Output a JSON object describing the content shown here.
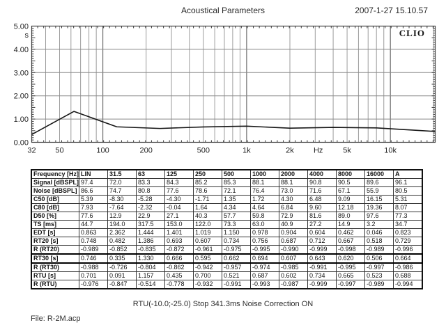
{
  "header": {
    "title": "Acoustical Parameters",
    "datetime": "2007-1-27 15.10.57"
  },
  "brand": "CLIO",
  "colors": {
    "grid_minor": "#9c9c9c",
    "grid_major": "#6b6b6b",
    "grid_horizontal": "#8a8a8a",
    "axis": "#3c3c3c",
    "curve": "#161616",
    "text": "#222222"
  },
  "chart_data": {
    "type": "line",
    "title": "Acoustical Parameters",
    "xlabel": "Hz",
    "ylabel": "s",
    "x_scale": "log",
    "xlim": [
      32,
      20500
    ],
    "ylim": [
      0,
      5
    ],
    "grid": true,
    "y_ticks": [
      {
        "v": 5,
        "label": "5.00"
      },
      {
        "v": 4,
        "label": "4.00"
      },
      {
        "v": 3,
        "label": "3.00"
      },
      {
        "v": 2,
        "label": "2.00"
      },
      {
        "v": 1,
        "label": "1.00"
      },
      {
        "v": 0,
        "label": "0.00"
      }
    ],
    "x_tick_labels": [
      {
        "f": 32,
        "label": "32"
      },
      {
        "f": 50,
        "label": "50"
      },
      {
        "f": 100,
        "label": "100"
      },
      {
        "f": 200,
        "label": "200"
      },
      {
        "f": 500,
        "label": "500"
      },
      {
        "f": 1000,
        "label": "1k"
      },
      {
        "f": 2000,
        "label": "2k"
      },
      {
        "f": 3150,
        "label": "Hz"
      },
      {
        "f": 5000,
        "label": "5k"
      },
      {
        "f": 10000,
        "label": "10k"
      }
    ],
    "grid_freqs": [
      40,
      50,
      60,
      70,
      80,
      90,
      100,
      200,
      300,
      400,
      500,
      600,
      700,
      800,
      900,
      1000,
      2000,
      3000,
      4000,
      5000,
      6000,
      7000,
      8000,
      9000,
      10000,
      20000
    ],
    "major_freqs": [
      100,
      1000,
      10000
    ],
    "series": [
      {
        "name": "RT30 [s]",
        "x": [
          31.5,
          63,
          125,
          250,
          500,
          1000,
          2000,
          4000,
          8000,
          16000
        ],
        "y": [
          0.335,
          1.33,
          0.666,
          0.595,
          0.662,
          0.694,
          0.607,
          0.643,
          0.62,
          0.506
        ]
      }
    ]
  },
  "table": {
    "columns": [
      "Frequency [Hz]",
      "LIN",
      "31.5",
      "63",
      "125",
      "250",
      "500",
      "1000",
      "2000",
      "4000",
      "8000",
      "16000",
      "A"
    ],
    "rows": [
      {
        "label": "Signal [dBSPL]",
        "values": [
          "97.4",
          "72.0",
          "83.3",
          "84.3",
          "85.2",
          "85.3",
          "88.1",
          "88.1",
          "90.8",
          "90.5",
          "89.6",
          "96.1"
        ]
      },
      {
        "label": "Noise [dBSPL]",
        "values": [
          "86.6",
          "74.7",
          "80.8",
          "77.6",
          "78.6",
          "72.1",
          "76.4",
          "73.0",
          "71.6",
          "67.1",
          "55.9",
          "80.5"
        ]
      },
      {
        "label": "C50 [dB]",
        "values": [
          "5.39",
          "-8.30",
          "-5.28",
          "-4.30",
          "-1.71",
          "1.35",
          "1.72",
          "4.30",
          "6.48",
          "9.09",
          "16.15",
          "5.31"
        ]
      },
      {
        "label": "C80 [dB]",
        "values": [
          "7.93",
          "-7.64",
          "-2.32",
          "-0.04",
          "1.64",
          "4.34",
          "4.64",
          "6.84",
          "9.60",
          "12.18",
          "19.36",
          "8.07"
        ]
      },
      {
        "label": "D50 [%]",
        "values": [
          "77.6",
          "12.9",
          "22.9",
          "27.1",
          "40.3",
          "57.7",
          "59.8",
          "72.9",
          "81.6",
          "89.0",
          "97.6",
          "77.3"
        ]
      },
      {
        "label": "TS [ms]",
        "values": [
          "44.7",
          "194.0",
          "317.5",
          "153.0",
          "122.0",
          "73.3",
          "63.0",
          "40.9",
          "27.2",
          "14.9",
          "3.2",
          "34.7"
        ]
      },
      {
        "label": "EDT [s]",
        "values": [
          "0.863",
          "2.362",
          "1.444",
          "1.401",
          "1.019",
          "1.150",
          "0.978",
          "0.904",
          "0.604",
          "0.462",
          "0.046",
          "0.823"
        ]
      },
      {
        "label": "RT20 [s]",
        "values": [
          "0.748",
          "0.482",
          "1.386",
          "0.693",
          "0.607",
          "0.734",
          "0.756",
          "0.687",
          "0.712",
          "0.667",
          "0.518",
          "0.729"
        ]
      },
      {
        "label": "R (RT20)",
        "values": [
          "-0.989",
          "-0.852",
          "-0.835",
          "-0.872",
          "-0.961",
          "-0.975",
          "-0.995",
          "-0.990",
          "-0.999",
          "-0.998",
          "-0.989",
          "-0.996"
        ]
      },
      {
        "label": "RT30 [s]",
        "highlighted": true,
        "values": [
          "0.746",
          "0.335",
          "1.330",
          "0.666",
          "0.595",
          "0.662",
          "0.694",
          "0.607",
          "0.643",
          "0.620",
          "0.506",
          "0.664"
        ]
      },
      {
        "label": "R (RT30)",
        "values": [
          "-0.988",
          "-0.726",
          "-0.804",
          "-0.862",
          "-0.942",
          "-0.957",
          "-0.974",
          "-0.985",
          "-0.991",
          "-0.995",
          "-0.997",
          "-0.986"
        ]
      },
      {
        "label": "RTU [s]",
        "values": [
          "0.701",
          "0.091",
          "1.157",
          "0.435",
          "0.700",
          "0.521",
          "0.687",
          "0.602",
          "0.734",
          "0.665",
          "0.523",
          "0.688"
        ]
      },
      {
        "label": "R (RTU)",
        "values": [
          "-0.976",
          "-0.847",
          "-0.514",
          "-0.778",
          "-0.932",
          "-0.991",
          "-0.993",
          "-0.987",
          "-0.999",
          "-0.997",
          "-0.989",
          "-0.994"
        ]
      }
    ]
  },
  "footer": {
    "status": "RTU(-10.0;-25.0) Stop 341.3ms Noise Correction ON",
    "file": "File: R-2M.acp"
  }
}
